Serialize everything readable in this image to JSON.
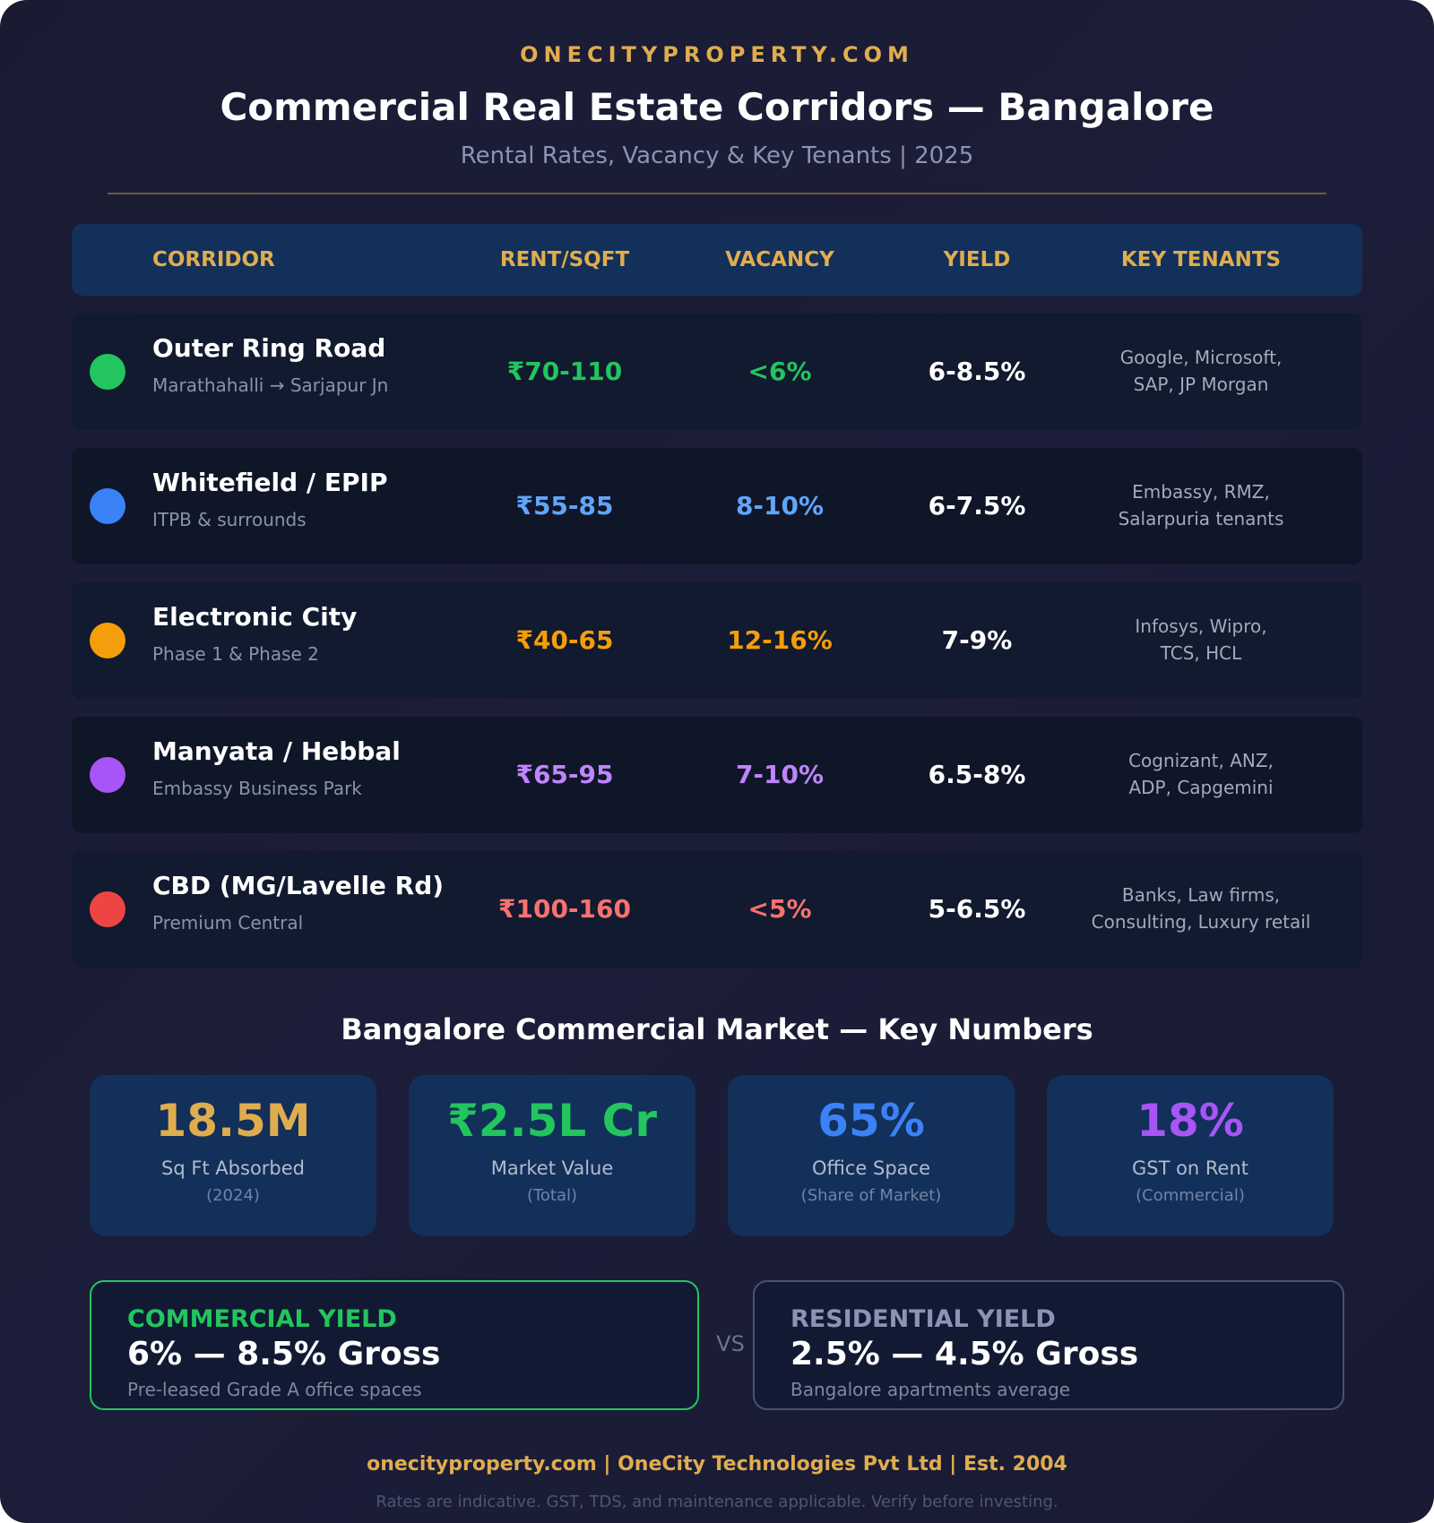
{
  "header": {
    "brand": "ONECITYPROPERTY.COM",
    "title": "Commercial Real Estate Corridors — Bangalore",
    "subtitle": "Rental Rates, Vacancy & Key Tenants | 2025"
  },
  "table": {
    "columns": [
      "CORRIDOR",
      "RENT/SQFT",
      "VACANCY",
      "YIELD",
      "KEY TENANTS"
    ],
    "rows": [
      {
        "name": "Outer Ring Road",
        "sub": "Marathahalli → Sarjapur Jn",
        "rent": "₹70-110",
        "vacancy": "<6%",
        "yield": "6-8.5%",
        "tenants_line1": "Google, Microsoft,",
        "tenants_line2": "SAP, JP Morgan",
        "color": "#22c55e"
      },
      {
        "name": "Whitefield / EPIP",
        "sub": "ITPB & surrounds",
        "rent": "₹55-85",
        "vacancy": "8-10%",
        "yield": "6-7.5%",
        "tenants_line1": "Embassy, RMZ,",
        "tenants_line2": "Salarpuria tenants",
        "color": "#3b82f6"
      },
      {
        "name": "Electronic City",
        "sub": "Phase 1 & Phase 2",
        "rent": "₹40-65",
        "vacancy": "12-16%",
        "yield": "7-9%",
        "tenants_line1": "Infosys, Wipro,",
        "tenants_line2": "TCS, HCL",
        "color": "#f59e0b"
      },
      {
        "name": "Manyata / Hebbal",
        "sub": "Embassy Business Park",
        "rent": "₹65-95",
        "vacancy": "7-10%",
        "yield": "6.5-8%",
        "tenants_line1": "Cognizant, ANZ,",
        "tenants_line2": "ADP, Capgemini",
        "color": "#a855f7"
      },
      {
        "name": "CBD (MG/Lavelle Rd)",
        "sub": "Premium Central",
        "rent": "₹100-160",
        "vacancy": "<5%",
        "yield": "5-6.5%",
        "tenants_line1": "Banks, Law firms,",
        "tenants_line2": "Consulting, Luxury retail",
        "color": "#ef4444"
      }
    ]
  },
  "key_numbers": {
    "title": "Bangalore Commercial Market — Key Numbers",
    "stats": [
      {
        "value": "18.5M",
        "label": "Sq Ft Absorbed",
        "note": "(2024)",
        "color": "#e0ad4e"
      },
      {
        "value": "₹2.5L Cr",
        "label": "Market Value",
        "note": "(Total)",
        "color": "#22c55e"
      },
      {
        "value": "65%",
        "label": "Office Space",
        "note": "(Share of Market)",
        "color": "#3b82f6"
      },
      {
        "value": "18%",
        "label": "GST on Rent",
        "note": "(Commercial)",
        "color": "#a855f7"
      }
    ]
  },
  "comparison": {
    "commercial": {
      "title": "COMMERCIAL YIELD",
      "value": "6% — 8.5% Gross",
      "desc": "Pre-leased Grade A office spaces",
      "color": "#22c55e"
    },
    "vs": "VS",
    "residential": {
      "title": "RESIDENTIAL YIELD",
      "value": "2.5% — 4.5% Gross",
      "desc": "Bangalore apartments average",
      "color": "#8a95b5"
    }
  },
  "footer": {
    "line": "onecityproperty.com | OneCity Technologies Pvt Ltd | Est. 2004",
    "disclaimer": "Rates are indicative. GST, TDS, and maintenance applicable. Verify before investing."
  }
}
